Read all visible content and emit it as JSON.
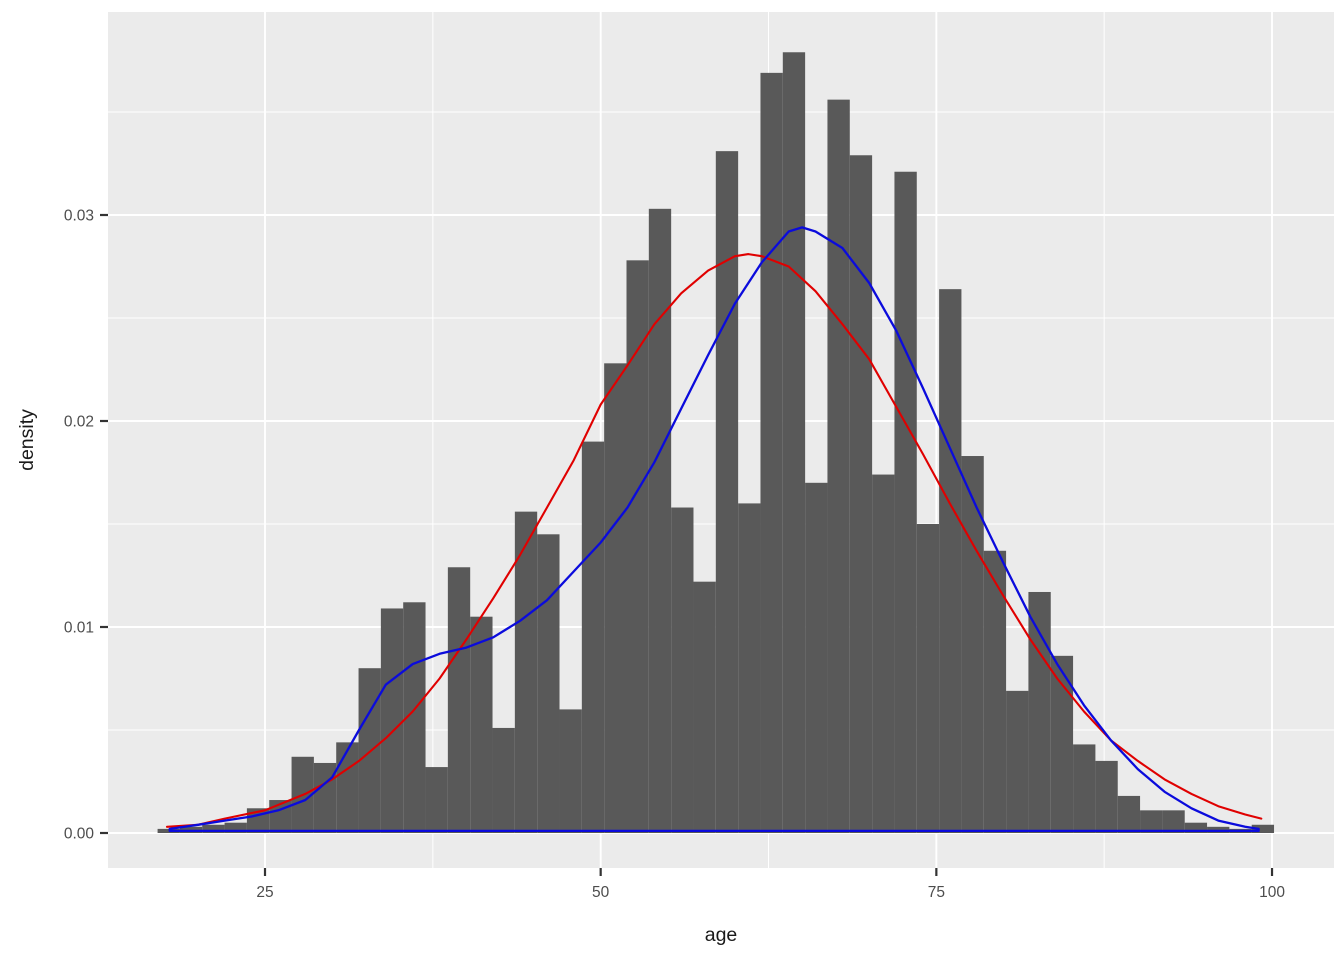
{
  "chart_data": {
    "type": "bar",
    "subtype": "histogram_with_density_curves",
    "title": "",
    "xlabel": "age",
    "ylabel": "density",
    "grid": "on",
    "legend_position": "none",
    "x_ticks": {
      "values": [
        25,
        50,
        75,
        100
      ],
      "labels": [
        "25",
        "50",
        "75",
        "100"
      ]
    },
    "y_ticks": {
      "values": [
        0,
        0.01,
        0.02,
        0.03
      ],
      "labels": [
        "0.00",
        "0.01",
        "0.02",
        "0.03"
      ]
    },
    "x_minor_gridlines": [
      37.5,
      62.5,
      87.5
    ],
    "y_minor_gridlines": [
      0.005,
      0.015,
      0.025,
      0.035
    ],
    "xlim": [
      13.3,
      104.5
    ],
    "ylim": [
      -0.0019,
      0.0397
    ],
    "histogram": {
      "name": "age-histogram",
      "bin_start": 17.0,
      "bin_width": 1.663,
      "fill": "#595959",
      "densities": [
        0.0002,
        0.0003,
        0.0004,
        0.0005,
        0.0012,
        0.0016,
        0.0037,
        0.0034,
        0.0044,
        0.008,
        0.0109,
        0.0112,
        0.0032,
        0.0129,
        0.0105,
        0.0051,
        0.0156,
        0.0145,
        0.006,
        0.019,
        0.0228,
        0.0278,
        0.0303,
        0.0158,
        0.0122,
        0.0331,
        0.016,
        0.0369,
        0.0379,
        0.017,
        0.0356,
        0.0329,
        0.0174,
        0.0321,
        0.015,
        0.0264,
        0.0183,
        0.0137,
        0.0069,
        0.0117,
        0.0086,
        0.0043,
        0.0035,
        0.0018,
        0.0011,
        0.0011,
        0.0005,
        0.0003,
        0.0002,
        0.0004
      ]
    },
    "series": [
      {
        "name": "kernel-density-estimate",
        "type": "line",
        "color": "#0B0BDC",
        "stroke_width": 2.3,
        "closed_along_baseline": true,
        "points": [
          [
            17.9,
            0.0002
          ],
          [
            20,
            0.0004
          ],
          [
            22,
            0.0006
          ],
          [
            24,
            0.0008
          ],
          [
            26,
            0.0011
          ],
          [
            28,
            0.0016
          ],
          [
            30,
            0.0027
          ],
          [
            32,
            0.005
          ],
          [
            34,
            0.0072
          ],
          [
            36,
            0.0082
          ],
          [
            38,
            0.0087
          ],
          [
            40,
            0.009
          ],
          [
            42,
            0.0095
          ],
          [
            44,
            0.0103
          ],
          [
            46,
            0.0113
          ],
          [
            48,
            0.0127
          ],
          [
            50,
            0.0141
          ],
          [
            52,
            0.0158
          ],
          [
            54,
            0.018
          ],
          [
            56,
            0.0206
          ],
          [
            58,
            0.0232
          ],
          [
            60,
            0.0257
          ],
          [
            62,
            0.0277
          ],
          [
            64,
            0.0292
          ],
          [
            65,
            0.0294
          ],
          [
            66,
            0.0292
          ],
          [
            68,
            0.0284
          ],
          [
            70,
            0.0267
          ],
          [
            72,
            0.0244
          ],
          [
            74,
            0.0216
          ],
          [
            76,
            0.0187
          ],
          [
            78,
            0.0158
          ],
          [
            80,
            0.0131
          ],
          [
            82,
            0.0105
          ],
          [
            84,
            0.0082
          ],
          [
            86,
            0.0062
          ],
          [
            88,
            0.0045
          ],
          [
            90,
            0.0031
          ],
          [
            92,
            0.002
          ],
          [
            94,
            0.0012
          ],
          [
            96,
            0.0006
          ],
          [
            98,
            0.0003
          ],
          [
            99.0,
            0.0002
          ]
        ]
      },
      {
        "name": "normal-curve",
        "type": "line",
        "color": "#E00000",
        "stroke_width": 2.1,
        "mu": 61,
        "sigma": 14.2,
        "peak_density": 0.0281,
        "points": [
          [
            17.7,
            0.0003
          ],
          [
            20,
            0.0004
          ],
          [
            22,
            0.0007
          ],
          [
            25,
            0.0011
          ],
          [
            28,
            0.0019
          ],
          [
            30,
            0.0026
          ],
          [
            32,
            0.0035
          ],
          [
            34,
            0.0046
          ],
          [
            36,
            0.0059
          ],
          [
            38,
            0.0075
          ],
          [
            40,
            0.0094
          ],
          [
            42,
            0.0114
          ],
          [
            44,
            0.0135
          ],
          [
            46,
            0.0158
          ],
          [
            48,
            0.0181
          ],
          [
            50,
            0.0208
          ],
          [
            52,
            0.0227
          ],
          [
            54,
            0.0247
          ],
          [
            56,
            0.0262
          ],
          [
            58,
            0.0273
          ],
          [
            60,
            0.028
          ],
          [
            61,
            0.0281
          ],
          [
            62,
            0.028
          ],
          [
            64,
            0.0275
          ],
          [
            66,
            0.0263
          ],
          [
            68,
            0.0247
          ],
          [
            70,
            0.023
          ],
          [
            72,
            0.0207
          ],
          [
            74,
            0.0184
          ],
          [
            76,
            0.016
          ],
          [
            78,
            0.0137
          ],
          [
            80,
            0.0115
          ],
          [
            82,
            0.0094
          ],
          [
            84,
            0.0075
          ],
          [
            86,
            0.0059
          ],
          [
            88,
            0.0045
          ],
          [
            90,
            0.0035
          ],
          [
            92,
            0.0026
          ],
          [
            94,
            0.0019
          ],
          [
            96,
            0.0013
          ],
          [
            98,
            0.0009
          ],
          [
            99.2,
            0.0007
          ]
        ]
      }
    ],
    "colors": {
      "figure_background": "#FFFFFF",
      "panel_background": "#EBEBEB",
      "gridline": "#FFFFFF",
      "tick_text": "#4D4D4D",
      "axis_title_text": "#1A1A1A",
      "tick_mark": "#333333"
    }
  }
}
